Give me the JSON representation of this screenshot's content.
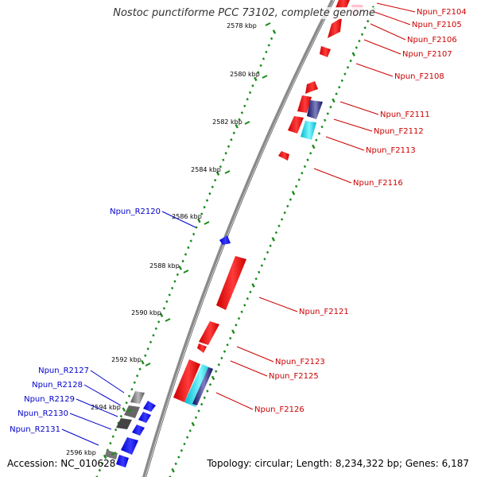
{
  "title": "Nostoc punctiforme PCC 73102, complete genome",
  "accession": "Accession: NC_010628",
  "topology": "Topology: circular; Length: 8,234,322 bp; Genes: 6,187",
  "colors": {
    "forward_gene": "#ff0000",
    "reverse_gene": "#0000ff",
    "forward_label": "#cc0000",
    "reverse_label": "#0000cc",
    "backbone": "#8a8a8a",
    "gc_dots": "#1a8a1a",
    "cyan_feature": "#00e5ff",
    "navy_feature": "#1a1a80",
    "pink_feature": "#ffc0d0"
  },
  "ticks": [
    "2578 kbp",
    "2580 kbp",
    "2582 kbp",
    "2584 kbp",
    "2586 kbp",
    "2588 kbp",
    "2590 kbp",
    "2592 kbp",
    "2594 kbp",
    "2596 kbp"
  ],
  "forward_labels": [
    "Npun_F2104",
    "Npun_F2105",
    "Npun_F2106",
    "Npun_F2107",
    "Npun_F2108",
    "Npun_F2111",
    "Npun_F2112",
    "Npun_F2113",
    "Npun_F2116",
    "Npun_F2121",
    "Npun_F2123",
    "Npun_F2125",
    "Npun_F2126"
  ],
  "reverse_labels": [
    "Npun_R2120",
    "Npun_R2127",
    "Npun_R2128",
    "Npun_R2129",
    "Npun_R2130",
    "Npun_R2131"
  ]
}
